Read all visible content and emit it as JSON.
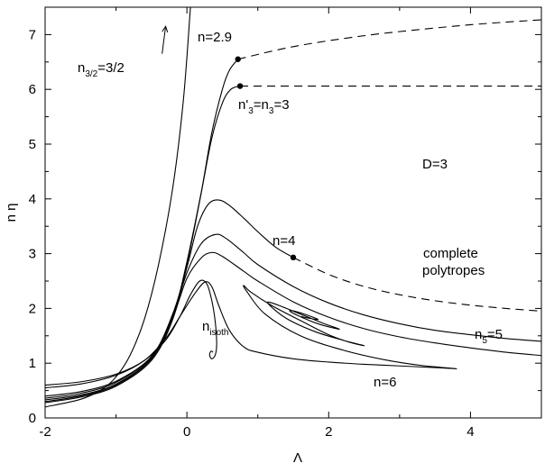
{
  "chart_data": {
    "type": "line",
    "xlabel": "Λ",
    "ylabel": "n η",
    "xlim": [
      -2,
      5
    ],
    "ylim": [
      0,
      7.5
    ],
    "xticks": [
      -2,
      0,
      2,
      4
    ],
    "yticks": [
      0,
      1,
      2,
      3,
      4,
      5,
      6,
      7
    ],
    "grid": false,
    "annotations": {
      "n29": "n=2.9",
      "n32_main": "n",
      "n32_sub": "3/2",
      "n32_rest": "=3/2",
      "n3_a": "n'",
      "n3_a_sub": "3",
      "n3_b": "=n",
      "n3_b_sub": "3",
      "n3_c": "=3",
      "d3": "D=3",
      "n4": "n=4",
      "complete1": "complete",
      "complete2": "polytropes",
      "nisoth_main": "n",
      "nisoth_sub": "isoth",
      "n5_main": "n",
      "n5_sub": "5",
      "n5_rest": "=5",
      "n6": "n=6"
    },
    "series": [
      {
        "id": "n32",
        "label_key": "n32",
        "style": "solid",
        "points": [
          [
            -2,
            0.2
          ],
          [
            -1.5,
            0.34
          ],
          [
            -1.2,
            0.52
          ],
          [
            -1.0,
            0.75
          ],
          [
            -0.8,
            1.15
          ],
          [
            -0.6,
            1.8
          ],
          [
            -0.4,
            2.8
          ],
          [
            -0.2,
            4.2
          ],
          [
            -0.05,
            5.8
          ],
          [
            0.05,
            7.5
          ]
        ]
      },
      {
        "id": "n29",
        "label_key": "n29",
        "style": "solid",
        "points": [
          [
            -2,
            0.28
          ],
          [
            -1.5,
            0.38
          ],
          [
            -1.0,
            0.58
          ],
          [
            -0.5,
            1.05
          ],
          [
            -0.2,
            1.8
          ],
          [
            0.0,
            2.8
          ],
          [
            0.2,
            4.1
          ],
          [
            0.35,
            5.2
          ],
          [
            0.5,
            6.0
          ],
          [
            0.6,
            6.35
          ],
          [
            0.72,
            6.55
          ]
        ]
      },
      {
        "id": "n29_dashed",
        "label_key": "n29",
        "style": "dashed",
        "points": [
          [
            0.72,
            6.55
          ],
          [
            1.5,
            6.78
          ],
          [
            2.5,
            6.98
          ],
          [
            3.5,
            7.12
          ],
          [
            4.2,
            7.2
          ],
          [
            5.0,
            7.27
          ]
        ]
      },
      {
        "id": "n3",
        "label_key": "n3",
        "style": "solid",
        "points": [
          [
            -2,
            0.3
          ],
          [
            -1.5,
            0.4
          ],
          [
            -1.0,
            0.6
          ],
          [
            -0.5,
            1.08
          ],
          [
            -0.2,
            1.85
          ],
          [
            0.0,
            2.85
          ],
          [
            0.2,
            4.1
          ],
          [
            0.35,
            5.1
          ],
          [
            0.5,
            5.75
          ],
          [
            0.62,
            6.0
          ],
          [
            0.75,
            6.06
          ]
        ]
      },
      {
        "id": "n3_dashed",
        "label_key": "n3",
        "style": "dashed",
        "points": [
          [
            0.75,
            6.06
          ],
          [
            2.0,
            6.06
          ],
          [
            3.5,
            6.06
          ],
          [
            5.0,
            6.06
          ]
        ]
      },
      {
        "id": "n4",
        "label_key": "n4",
        "style": "solid",
        "points": [
          [
            -2,
            0.33
          ],
          [
            -1.5,
            0.42
          ],
          [
            -1.0,
            0.62
          ],
          [
            -0.5,
            1.1
          ],
          [
            -0.2,
            1.9
          ],
          [
            0.0,
            2.75
          ],
          [
            0.15,
            3.5
          ],
          [
            0.3,
            3.9
          ],
          [
            0.45,
            3.98
          ],
          [
            0.6,
            3.88
          ],
          [
            0.8,
            3.65
          ],
          [
            1.0,
            3.4
          ],
          [
            1.25,
            3.12
          ],
          [
            1.5,
            2.93
          ]
        ]
      },
      {
        "id": "n4_dashed",
        "label_key": "n4",
        "style": "dashed",
        "points": [
          [
            1.5,
            2.93
          ],
          [
            2.0,
            2.62
          ],
          [
            2.5,
            2.4
          ],
          [
            3.0,
            2.25
          ],
          [
            3.5,
            2.14
          ],
          [
            4.0,
            2.06
          ],
          [
            4.5,
            2.0
          ],
          [
            5.0,
            1.95
          ]
        ]
      },
      {
        "id": "n45",
        "label_key": "",
        "style": "solid",
        "points": [
          [
            -2,
            0.36
          ],
          [
            -1.5,
            0.45
          ],
          [
            -1.0,
            0.65
          ],
          [
            -0.5,
            1.12
          ],
          [
            -0.2,
            1.88
          ],
          [
            0.0,
            2.65
          ],
          [
            0.2,
            3.18
          ],
          [
            0.4,
            3.35
          ],
          [
            0.55,
            3.28
          ],
          [
            0.8,
            3.02
          ],
          [
            1.0,
            2.8
          ],
          [
            1.5,
            2.4
          ],
          [
            2.0,
            2.1
          ],
          [
            2.5,
            1.88
          ],
          [
            3.0,
            1.72
          ],
          [
            3.5,
            1.6
          ],
          [
            4.0,
            1.52
          ],
          [
            4.5,
            1.45
          ],
          [
            5.0,
            1.4
          ]
        ]
      },
      {
        "id": "n5",
        "label_key": "n5",
        "style": "solid",
        "points": [
          [
            -2,
            0.4
          ],
          [
            -1.5,
            0.48
          ],
          [
            -1.0,
            0.67
          ],
          [
            -0.5,
            1.12
          ],
          [
            -0.2,
            1.84
          ],
          [
            0.0,
            2.55
          ],
          [
            0.2,
            2.92
          ],
          [
            0.35,
            3.02
          ],
          [
            0.5,
            2.95
          ],
          [
            0.8,
            2.68
          ],
          [
            1.0,
            2.5
          ],
          [
            1.5,
            2.12
          ],
          [
            2.0,
            1.84
          ],
          [
            2.5,
            1.63
          ],
          [
            3.0,
            1.48
          ],
          [
            3.5,
            1.37
          ],
          [
            4.0,
            1.28
          ],
          [
            4.5,
            1.2
          ],
          [
            5.0,
            1.14
          ]
        ]
      },
      {
        "id": "n6",
        "label_key": "n6",
        "style": "solid",
        "points": [
          [
            -2,
            0.55
          ],
          [
            -1.5,
            0.62
          ],
          [
            -1.0,
            0.78
          ],
          [
            -0.6,
            1.05
          ],
          [
            -0.3,
            1.45
          ],
          [
            -0.1,
            1.85
          ],
          [
            0.1,
            2.25
          ],
          [
            0.25,
            2.48
          ],
          [
            0.35,
            2.4
          ],
          [
            0.45,
            2.05
          ],
          [
            0.6,
            1.6
          ],
          [
            0.8,
            1.3
          ],
          [
            1.0,
            1.2
          ],
          [
            1.5,
            1.08
          ],
          [
            2.0,
            1.02
          ],
          [
            2.5,
            0.98
          ],
          [
            3.0,
            0.95
          ],
          [
            3.5,
            0.92
          ],
          [
            3.8,
            0.9
          ],
          [
            3.3,
            0.96
          ],
          [
            2.8,
            1.06
          ],
          [
            2.2,
            1.24
          ],
          [
            1.6,
            1.5
          ],
          [
            1.1,
            1.9
          ],
          [
            0.85,
            2.3
          ],
          [
            0.8,
            2.42
          ],
          [
            0.9,
            2.3
          ],
          [
            1.2,
            2.05
          ],
          [
            1.6,
            1.78
          ],
          [
            2.0,
            1.52
          ],
          [
            2.3,
            1.38
          ],
          [
            2.5,
            1.32
          ],
          [
            2.2,
            1.42
          ],
          [
            1.8,
            1.58
          ],
          [
            1.4,
            1.82
          ],
          [
            1.15,
            2.08
          ],
          [
            1.2,
            2.1
          ],
          [
            1.5,
            1.95
          ],
          [
            1.9,
            1.74
          ],
          [
            2.15,
            1.62
          ],
          [
            1.85,
            1.72
          ],
          [
            1.55,
            1.88
          ],
          [
            1.45,
            1.96
          ],
          [
            1.6,
            1.92
          ],
          [
            1.85,
            1.8
          ],
          [
            1.65,
            1.84
          ],
          [
            1.62,
            1.86
          ]
        ]
      },
      {
        "id": "nisoth",
        "label_key": "nisoth",
        "style": "solid",
        "points": [
          [
            -2,
            0.6
          ],
          [
            -1.5,
            0.66
          ],
          [
            -1.0,
            0.8
          ],
          [
            -0.6,
            1.05
          ],
          [
            -0.3,
            1.42
          ],
          [
            -0.1,
            1.85
          ],
          [
            0.05,
            2.25
          ],
          [
            0.18,
            2.5
          ],
          [
            0.28,
            2.45
          ],
          [
            0.35,
            2.15
          ],
          [
            0.4,
            1.75
          ],
          [
            0.42,
            1.35
          ],
          [
            0.4,
            1.15
          ],
          [
            0.35,
            1.08
          ],
          [
            0.32,
            1.15
          ],
          [
            0.34,
            1.22
          ],
          [
            0.37,
            1.2
          ]
        ]
      }
    ],
    "markers": [
      [
        0.72,
        6.55
      ],
      [
        0.75,
        6.06
      ],
      [
        1.5,
        2.93
      ]
    ],
    "arrow": {
      "from": [
        -0.35,
        6.65
      ],
      "to": [
        -0.3,
        7.15
      ]
    }
  }
}
